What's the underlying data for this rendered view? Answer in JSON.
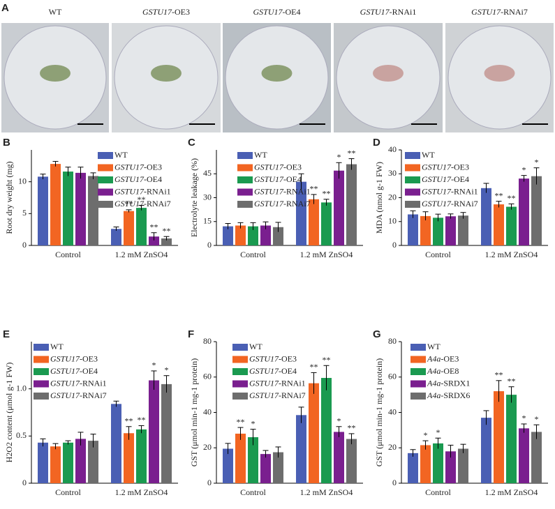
{
  "panel_a": {
    "label": "A",
    "captions": [
      "WT",
      "GSTU17-OE3",
      "GSTU17-OE4",
      "GSTU17-RNAi1",
      "GSTU17-RNAi7"
    ]
  },
  "chart_data": [
    {
      "type": "bar",
      "panel": "B",
      "ylabel": "Root dry weight (mg)",
      "categories": [
        "Control",
        "1.2 mM ZnSO4"
      ],
      "ylim": [
        0,
        15
      ],
      "yticks": [
        0,
        5,
        10
      ],
      "series": [
        {
          "name": "WT",
          "color": "#4a5fb4",
          "values": [
            10.8,
            2.6
          ],
          "errors": [
            0.4,
            0.3
          ],
          "annotations": [
            null,
            null
          ]
        },
        {
          "name": "GSTU17-OE3",
          "color": "#f26522",
          "values": [
            12.8,
            5.4
          ],
          "errors": [
            0.4,
            0.2
          ],
          "annotations": [
            null,
            "**"
          ]
        },
        {
          "name": "GSTU17-OE4",
          "color": "#1a9a50",
          "values": [
            11.6,
            5.9
          ],
          "errors": [
            0.7,
            0.4
          ],
          "annotations": [
            null,
            "**"
          ]
        },
        {
          "name": "GSTU17-RNAi1",
          "color": "#7a1f8f",
          "values": [
            11.4,
            1.4
          ],
          "errors": [
            0.9,
            0.6
          ],
          "annotations": [
            null,
            "**"
          ]
        },
        {
          "name": "GSTU17-RNAi7",
          "color": "#6d6d6d",
          "values": [
            10.9,
            1.1
          ],
          "errors": [
            0.5,
            0.3
          ],
          "annotations": [
            null,
            "**"
          ]
        }
      ]
    },
    {
      "type": "bar",
      "panel": "C",
      "ylabel": "Electrolyte leakage (%)",
      "categories": [
        "Control",
        "1.2 mM ZnSO4"
      ],
      "ylim": [
        0,
        60
      ],
      "yticks": [
        0,
        15,
        30,
        45
      ],
      "series": [
        {
          "name": "WT",
          "color": "#4a5fb4",
          "values": [
            12,
            40
          ],
          "errors": [
            1.8,
            5
          ],
          "annotations": [
            null,
            null
          ]
        },
        {
          "name": "GSTU17-OE3",
          "color": "#f26522",
          "values": [
            12.5,
            29
          ],
          "errors": [
            1.8,
            3
          ],
          "annotations": [
            null,
            "**"
          ]
        },
        {
          "name": "GSTU17-OE4",
          "color": "#1a9a50",
          "values": [
            12,
            27
          ],
          "errors": [
            2.3,
            2
          ],
          "annotations": [
            null,
            "**"
          ]
        },
        {
          "name": "GSTU17-RNAi1",
          "color": "#7a1f8f",
          "values": [
            12.5,
            47
          ],
          "errors": [
            2.3,
            5
          ],
          "annotations": [
            null,
            "*"
          ]
        },
        {
          "name": "GSTU17-RNAi7",
          "color": "#6d6d6d",
          "values": [
            11.5,
            51
          ],
          "errors": [
            3,
            3.5
          ],
          "annotations": [
            null,
            "**"
          ]
        }
      ]
    },
    {
      "type": "bar",
      "panel": "D",
      "ylabel": "MDA (nmol g-1 FW)",
      "categories": [
        "Control",
        "1.2 mM ZnSO4"
      ],
      "ylim": [
        0,
        40
      ],
      "yticks": [
        0,
        10,
        20,
        30,
        40
      ],
      "series": [
        {
          "name": "WT",
          "color": "#4a5fb4",
          "values": [
            13,
            24
          ],
          "errors": [
            1.5,
            2
          ],
          "annotations": [
            null,
            null
          ]
        },
        {
          "name": "GSTU17-OE3",
          "color": "#f26522",
          "values": [
            12.3,
            17.2
          ],
          "errors": [
            1.8,
            1.3
          ],
          "annotations": [
            null,
            "**"
          ]
        },
        {
          "name": "GSTU17-OE4",
          "color": "#1a9a50",
          "values": [
            11.6,
            16.2
          ],
          "errors": [
            1.5,
            1.2
          ],
          "annotations": [
            null,
            "**"
          ]
        },
        {
          "name": "GSTU17-RNAi1",
          "color": "#7a1f8f",
          "values": [
            12.2,
            28
          ],
          "errors": [
            1,
            1.3
          ],
          "annotations": [
            null,
            "*"
          ]
        },
        {
          "name": "GSTU17-RNAi7",
          "color": "#6d6d6d",
          "values": [
            12.5,
            29
          ],
          "errors": [
            1.3,
            3.5
          ],
          "annotations": [
            null,
            "*"
          ]
        }
      ]
    },
    {
      "type": "bar",
      "panel": "E",
      "ylabel": "H2O2 content (μmol g-1 FW)",
      "categories": [
        "Control",
        "1.2 mM ZnSO4"
      ],
      "ylim": [
        0,
        1.5
      ],
      "yticks": [
        0,
        0.5,
        {
          "value": 1,
          "label": "1.0"
        }
      ],
      "series": [
        {
          "name": "WT",
          "color": "#4a5fb4",
          "values": [
            0.43,
            0.84
          ],
          "errors": [
            0.04,
            0.03
          ],
          "annotations": [
            null,
            null
          ]
        },
        {
          "name": "GSTU17-OE3",
          "color": "#f26522",
          "values": [
            0.39,
            0.53
          ],
          "errors": [
            0.03,
            0.07
          ],
          "annotations": [
            null,
            "**"
          ]
        },
        {
          "name": "GSTU17-OE4",
          "color": "#1a9a50",
          "values": [
            0.43,
            0.57
          ],
          "errors": [
            0.02,
            0.04
          ],
          "annotations": [
            null,
            "**"
          ]
        },
        {
          "name": "GSTU17-RNAi1",
          "color": "#7a1f8f",
          "values": [
            0.47,
            1.09
          ],
          "errors": [
            0.07,
            0.1
          ],
          "annotations": [
            null,
            "*"
          ]
        },
        {
          "name": "GSTU17-RNAi7",
          "color": "#6d6d6d",
          "values": [
            0.45,
            1.05
          ],
          "errors": [
            0.07,
            0.09
          ],
          "annotations": [
            null,
            "*"
          ]
        }
      ]
    },
    {
      "type": "bar",
      "panel": "F",
      "ylabel": "GST (μmol min-1 mg-1 protein)",
      "categories": [
        "Control",
        "1.2 mM ZnSO4"
      ],
      "ylim": [
        0,
        80
      ],
      "yticks": [
        0,
        20,
        40,
        60,
        80
      ],
      "series": [
        {
          "name": "WT",
          "color": "#4a5fb4",
          "values": [
            19.5,
            38.5
          ],
          "errors": [
            3,
            4.5
          ],
          "annotations": [
            null,
            null
          ]
        },
        {
          "name": "GSTU17-OE3",
          "color": "#f26522",
          "values": [
            28,
            56.5
          ],
          "errors": [
            3.5,
            6
          ],
          "annotations": [
            "**",
            "**"
          ]
        },
        {
          "name": "GSTU17-OE4",
          "color": "#1a9a50",
          "values": [
            26,
            59.5
          ],
          "errors": [
            4.5,
            7
          ],
          "annotations": [
            "*",
            "**"
          ]
        },
        {
          "name": "GSTU17-RNAi1",
          "color": "#7a1f8f",
          "values": [
            16.5,
            29
          ],
          "errors": [
            2,
            3
          ],
          "annotations": [
            null,
            "*"
          ]
        },
        {
          "name": "GSTU17-RNAi7",
          "color": "#6d6d6d",
          "values": [
            17.5,
            25
          ],
          "errors": [
            3,
            3
          ],
          "annotations": [
            null,
            "**"
          ]
        }
      ]
    },
    {
      "type": "bar",
      "panel": "G",
      "ylabel": "GST (μmol min-1 mg-1 protein)",
      "categories": [
        "Control",
        "1.2 mM ZnSO4"
      ],
      "ylim": [
        0,
        80
      ],
      "yticks": [
        0,
        20,
        40,
        60,
        80
      ],
      "series": [
        {
          "name": "WT",
          "color": "#4a5fb4",
          "values": [
            17,
            37
          ],
          "errors": [
            2,
            4
          ],
          "annotations": [
            null,
            null
          ]
        },
        {
          "name": "A4a-OE3",
          "color": "#f26522",
          "values": [
            21.5,
            52
          ],
          "errors": [
            2.5,
            6
          ],
          "annotations": [
            "*",
            "**"
          ]
        },
        {
          "name": "A4a-OE8",
          "color": "#1a9a50",
          "values": [
            22.5,
            50
          ],
          "errors": [
            3,
            4.5
          ],
          "annotations": [
            "*",
            "**"
          ]
        },
        {
          "name": "A4a-SRDX1",
          "color": "#7a1f8f",
          "values": [
            18,
            31
          ],
          "errors": [
            3.5,
            2.5
          ],
          "annotations": [
            null,
            "*"
          ]
        },
        {
          "name": "A4a-SRDX6",
          "color": "#6d6d6d",
          "values": [
            19.5,
            29
          ],
          "errors": [
            2.5,
            4
          ],
          "annotations": [
            null,
            "*"
          ]
        }
      ]
    }
  ]
}
